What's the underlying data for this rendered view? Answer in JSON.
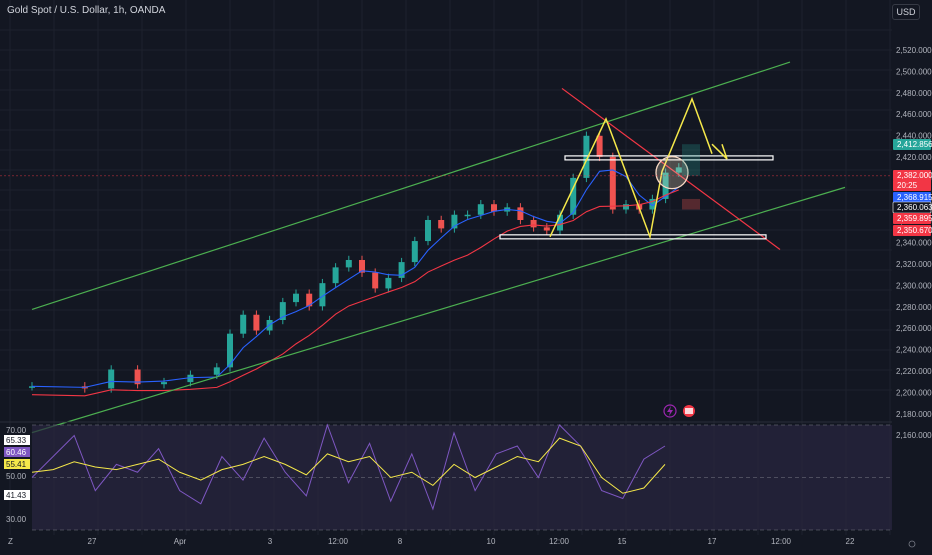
{
  "header": {
    "title": "Gold Spot / U.S. Dollar, 1h, OANDA",
    "currency_button": "USD"
  },
  "colors": {
    "background": "#131722",
    "grid": "#1e222d",
    "bull": "#26a69a",
    "bear": "#ef5350",
    "channel": "#4caf50",
    "ma_blue": "#2962ff",
    "ma_red": "#f23645",
    "drawing": "#f5e84a",
    "rsi_line": "#7e57c2",
    "rsi_ma": "#f5e84a",
    "rsi_band": "#2a2640"
  },
  "icons": [
    "lightning-icon",
    "flag-icon",
    "axis-settings-icon"
  ],
  "chart_data": [
    {
      "type": "candlestick",
      "title": "Gold Spot / U.S. Dollar, 1h, OANDA",
      "ylim": [
        2150,
        2530
      ],
      "y_ticks": [
        "2,520.000",
        "2,500.000",
        "2,480.000",
        "2,460.000",
        "2,440.000",
        "2,420.000",
        "2,400.000",
        "2,380.000",
        "2,360.000",
        "2,340.000",
        "2,320.000",
        "2,300.000",
        "2,280.000",
        "2,260.000",
        "2,240.000",
        "2,220.000",
        "2,200.000",
        "2,180.000",
        "2,160.000"
      ],
      "x_ticks": [
        "27",
        "Apr",
        "3",
        "12:00",
        "8",
        "10",
        "12:00",
        "15",
        "17",
        "12:00",
        "22"
      ],
      "price_series": [
        {
          "x": 0,
          "y": 2182
        },
        {
          "x": 4,
          "y": 2180
        },
        {
          "x": 6,
          "y": 2198
        },
        {
          "x": 8,
          "y": 2184
        },
        {
          "x": 10,
          "y": 2186
        },
        {
          "x": 12,
          "y": 2193
        },
        {
          "x": 14,
          "y": 2200
        },
        {
          "x": 15,
          "y": 2232
        },
        {
          "x": 16,
          "y": 2250
        },
        {
          "x": 17,
          "y": 2235
        },
        {
          "x": 18,
          "y": 2245
        },
        {
          "x": 19,
          "y": 2262
        },
        {
          "x": 20,
          "y": 2270
        },
        {
          "x": 21,
          "y": 2258
        },
        {
          "x": 22,
          "y": 2280
        },
        {
          "x": 23,
          "y": 2295
        },
        {
          "x": 24,
          "y": 2302
        },
        {
          "x": 25,
          "y": 2290
        },
        {
          "x": 26,
          "y": 2275
        },
        {
          "x": 27,
          "y": 2285
        },
        {
          "x": 28,
          "y": 2300
        },
        {
          "x": 29,
          "y": 2320
        },
        {
          "x": 30,
          "y": 2340
        },
        {
          "x": 31,
          "y": 2332
        },
        {
          "x": 32,
          "y": 2345
        },
        {
          "x": 33,
          "y": 2345
        },
        {
          "x": 34,
          "y": 2355
        },
        {
          "x": 35,
          "y": 2348
        },
        {
          "x": 36,
          "y": 2352
        },
        {
          "x": 37,
          "y": 2340
        },
        {
          "x": 38,
          "y": 2333
        },
        {
          "x": 39,
          "y": 2330
        },
        {
          "x": 40,
          "y": 2345
        },
        {
          "x": 41,
          "y": 2380
        },
        {
          "x": 42,
          "y": 2420
        },
        {
          "x": 43,
          "y": 2400
        },
        {
          "x": 44,
          "y": 2350
        },
        {
          "x": 45,
          "y": 2355
        },
        {
          "x": 46,
          "y": 2350
        },
        {
          "x": 47,
          "y": 2360
        },
        {
          "x": 48,
          "y": 2385
        },
        {
          "x": 49,
          "y": 2390
        }
      ],
      "drawings": {
        "upper_channel": [
          [
            2255,
            0
          ],
          [
            2490,
            0
          ]
        ],
        "lower_channel": [
          [
            2138,
            0
          ],
          [
            2371,
            0
          ]
        ],
        "support_level": 2324,
        "resistance_level": 2399,
        "zigzag_pattern": [
          2324,
          2436,
          2324,
          2386,
          2455,
          2403
        ]
      },
      "price_labels": [
        {
          "text": "2,412.856",
          "color": "#26a69a"
        },
        {
          "text": "2,382.000",
          "color": "#f23645"
        },
        {
          "text": "20:25",
          "color": "#f23645"
        },
        {
          "text": "2,368.915",
          "color": "#2962ff"
        },
        {
          "text": "2,360.063",
          "color": "#ffffff"
        },
        {
          "text": "2,359.895",
          "color": "#f23645"
        },
        {
          "text": "2,350.670",
          "color": "#f23645"
        }
      ]
    },
    {
      "type": "line",
      "title": "RSI",
      "ylim": [
        30,
        70
      ],
      "y_ticks": [
        "70.00",
        "65.33",
        "60.46",
        "55.41",
        "50.00",
        "41.43",
        "30.00"
      ],
      "series": [
        {
          "values": [
            50,
            58,
            66,
            45,
            55,
            52,
            61,
            45,
            40,
            58,
            49,
            65,
            52,
            43,
            70,
            48,
            63,
            41,
            59,
            38,
            67,
            45,
            59,
            62,
            50,
            70,
            62,
            45,
            42,
            57,
            62
          ]
        },
        {
          "values": [
            52,
            53,
            56,
            54,
            53,
            55,
            57,
            52,
            49,
            53,
            55,
            58,
            55,
            51,
            59,
            56,
            58,
            50,
            52,
            47,
            55,
            50,
            54,
            58,
            56,
            65,
            62,
            50,
            44,
            46,
            55
          ]
        }
      ]
    }
  ]
}
